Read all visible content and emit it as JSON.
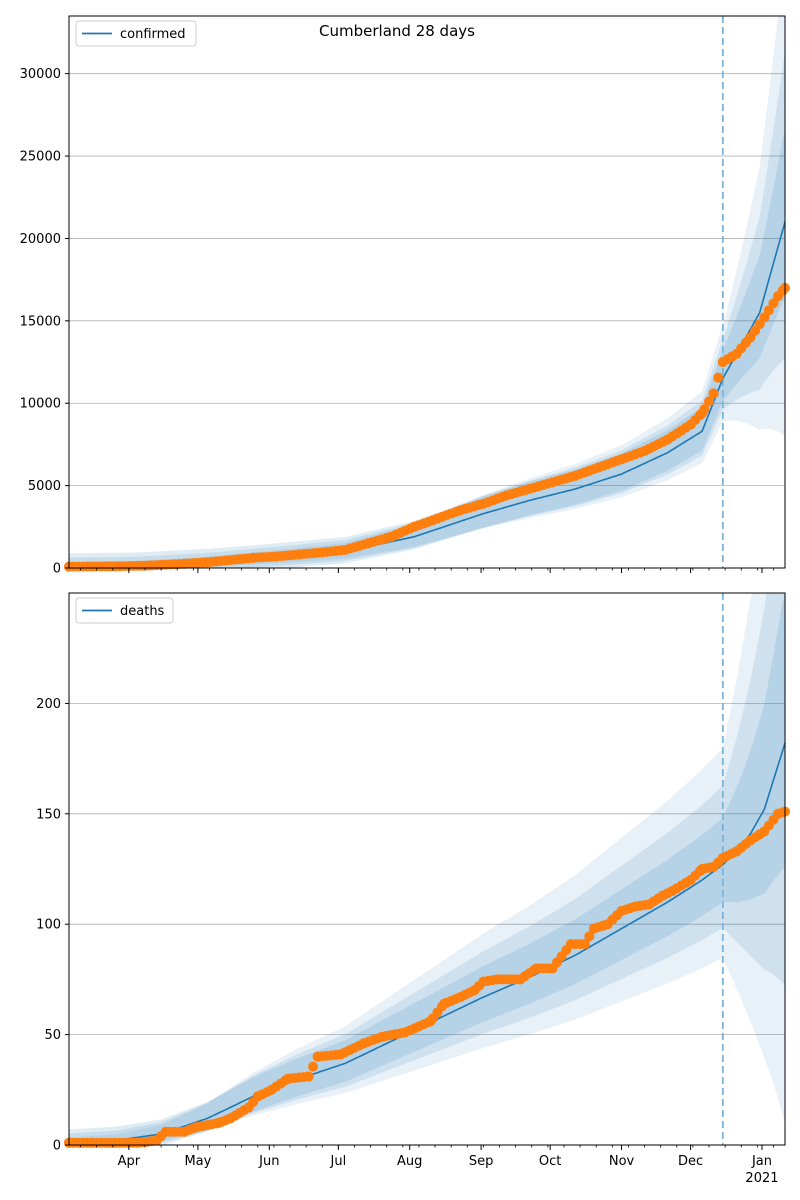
{
  "figure": {
    "title": "Cumberland 28 days"
  },
  "colors": {
    "model_line": "#1f77b4",
    "observed": "#ff7f0e",
    "band": "#1f77b4",
    "grid": "#b0b0b0",
    "forecast_line": "#7fb3d5"
  },
  "x_axis": {
    "month_labels": [
      "Apr",
      "May",
      "Jun",
      "Jul",
      "Aug",
      "Sep",
      "Oct",
      "Nov",
      "Dec",
      "Jan"
    ],
    "year_label": "2021",
    "domain_days": [
      0,
      311
    ],
    "forecast_start_day": 284
  },
  "chart_data": [
    {
      "type": "line",
      "title": "Cumberland 28 days",
      "legend": "confirmed",
      "legend_position": "top-left",
      "grid": "y",
      "ylim": [
        0,
        33500
      ],
      "yticks": [
        0,
        5000,
        10000,
        15000,
        20000,
        25000,
        30000
      ],
      "ytick_labels": [
        "0",
        "5000",
        "10000",
        "15000",
        "20000",
        "25000",
        "30000"
      ],
      "model_points": [
        [
          0,
          80
        ],
        [
          30,
          130
        ],
        [
          60,
          330
        ],
        [
          90,
          640
        ],
        [
          120,
          1000
        ],
        [
          150,
          1900
        ],
        [
          165,
          2600
        ],
        [
          180,
          3300
        ],
        [
          200,
          4100
        ],
        [
          220,
          4800
        ],
        [
          240,
          5700
        ],
        [
          260,
          7000
        ],
        [
          275,
          8300
        ],
        [
          284,
          11500
        ],
        [
          300,
          15500
        ],
        [
          311,
          21000
        ]
      ],
      "observed_points": [
        [
          0,
          80
        ],
        [
          20,
          100
        ],
        [
          35,
          150
        ],
        [
          50,
          260
        ],
        [
          60,
          350
        ],
        [
          70,
          480
        ],
        [
          80,
          620
        ],
        [
          90,
          700
        ],
        [
          100,
          820
        ],
        [
          110,
          950
        ],
        [
          120,
          1100
        ],
        [
          130,
          1500
        ],
        [
          140,
          1900
        ],
        [
          150,
          2500
        ],
        [
          160,
          3000
        ],
        [
          170,
          3500
        ],
        [
          180,
          3900
        ],
        [
          190,
          4400
        ],
        [
          200,
          4800
        ],
        [
          210,
          5200
        ],
        [
          220,
          5600
        ],
        [
          230,
          6100
        ],
        [
          240,
          6600
        ],
        [
          250,
          7100
        ],
        [
          260,
          7800
        ],
        [
          270,
          8700
        ],
        [
          275,
          9400
        ],
        [
          280,
          10600
        ],
        [
          284,
          12500
        ],
        [
          290,
          13000
        ],
        [
          296,
          14000
        ],
        [
          302,
          15200
        ],
        [
          308,
          16500
        ],
        [
          311,
          17000
        ]
      ],
      "band_spread": [
        0.08,
        0.16,
        0.26
      ]
    },
    {
      "type": "line",
      "title": "",
      "legend": "deaths",
      "legend_position": "top-left",
      "grid": "y",
      "ylim": [
        0,
        250
      ],
      "yticks": [
        0,
        50,
        100,
        150,
        200
      ],
      "ytick_labels": [
        "0",
        "50",
        "100",
        "150",
        "200"
      ],
      "model_points": [
        [
          0,
          1
        ],
        [
          20,
          2
        ],
        [
          40,
          5
        ],
        [
          60,
          12
        ],
        [
          80,
          22
        ],
        [
          100,
          30
        ],
        [
          120,
          37
        ],
        [
          140,
          47
        ],
        [
          160,
          57
        ],
        [
          180,
          67
        ],
        [
          200,
          76
        ],
        [
          220,
          86
        ],
        [
          240,
          98
        ],
        [
          260,
          110
        ],
        [
          275,
          120
        ],
        [
          284,
          127
        ],
        [
          290,
          133
        ],
        [
          296,
          141
        ],
        [
          302,
          152
        ],
        [
          311,
          182
        ]
      ],
      "observed_points": [
        [
          0,
          1
        ],
        [
          10,
          1
        ],
        [
          20,
          1
        ],
        [
          30,
          1
        ],
        [
          38,
          2
        ],
        [
          42,
          6
        ],
        [
          50,
          6
        ],
        [
          55,
          8
        ],
        [
          65,
          10
        ],
        [
          70,
          12
        ],
        [
          78,
          17
        ],
        [
          82,
          22
        ],
        [
          88,
          25
        ],
        [
          95,
          30
        ],
        [
          104,
          31
        ],
        [
          108,
          40
        ],
        [
          118,
          41
        ],
        [
          128,
          46
        ],
        [
          136,
          49
        ],
        [
          146,
          51
        ],
        [
          157,
          56
        ],
        [
          163,
          64
        ],
        [
          170,
          67
        ],
        [
          176,
          70
        ],
        [
          180,
          74
        ],
        [
          186,
          75
        ],
        [
          196,
          75
        ],
        [
          203,
          80
        ],
        [
          210,
          80
        ],
        [
          218,
          91
        ],
        [
          224,
          91
        ],
        [
          228,
          98
        ],
        [
          234,
          100
        ],
        [
          240,
          106
        ],
        [
          246,
          108
        ],
        [
          252,
          109
        ],
        [
          258,
          113
        ],
        [
          262,
          115
        ],
        [
          270,
          120
        ],
        [
          275,
          125
        ],
        [
          280,
          126
        ],
        [
          284,
          130
        ],
        [
          290,
          133
        ],
        [
          296,
          138
        ],
        [
          302,
          142
        ],
        [
          308,
          150
        ],
        [
          311,
          151
        ]
      ],
      "band_spread": [
        0.12,
        0.25,
        0.4
      ]
    }
  ]
}
